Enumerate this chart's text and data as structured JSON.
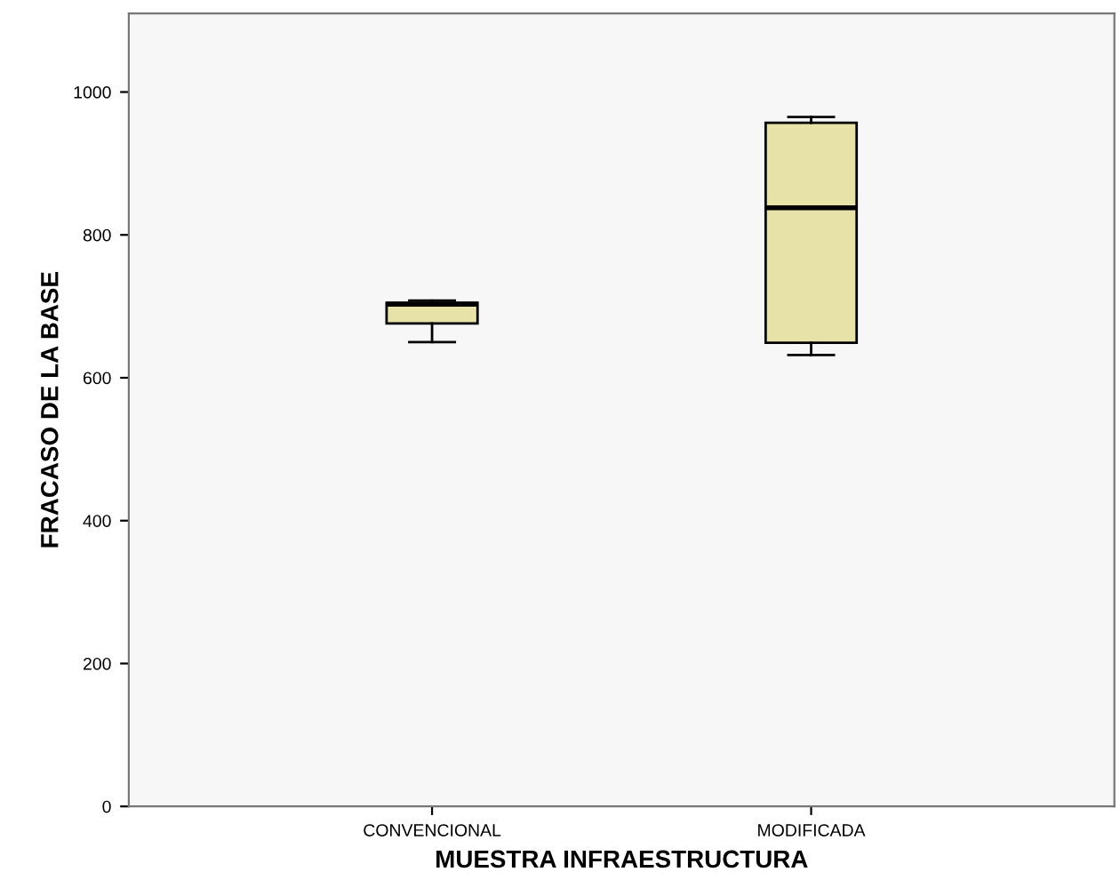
{
  "chart_data": {
    "type": "box",
    "xlabel": "MUESTRA INFRAESTRUCTURA",
    "ylabel": "FRACASO DE LA BASE",
    "categories": [
      "CONVENCIONAL",
      "MODIFICADA"
    ],
    "color": "#e6e2a8",
    "boxes": [
      {
        "low": 650,
        "q1": 676,
        "median": 703,
        "q3": 705,
        "high": 708
      },
      {
        "low": 632,
        "q1": 649,
        "median": 838,
        "q3": 957,
        "high": 965
      }
    ],
    "ylim": [
      0,
      1110
    ],
    "yticks": [
      0,
      200,
      400,
      600,
      800,
      1000
    ],
    "grid": false
  }
}
